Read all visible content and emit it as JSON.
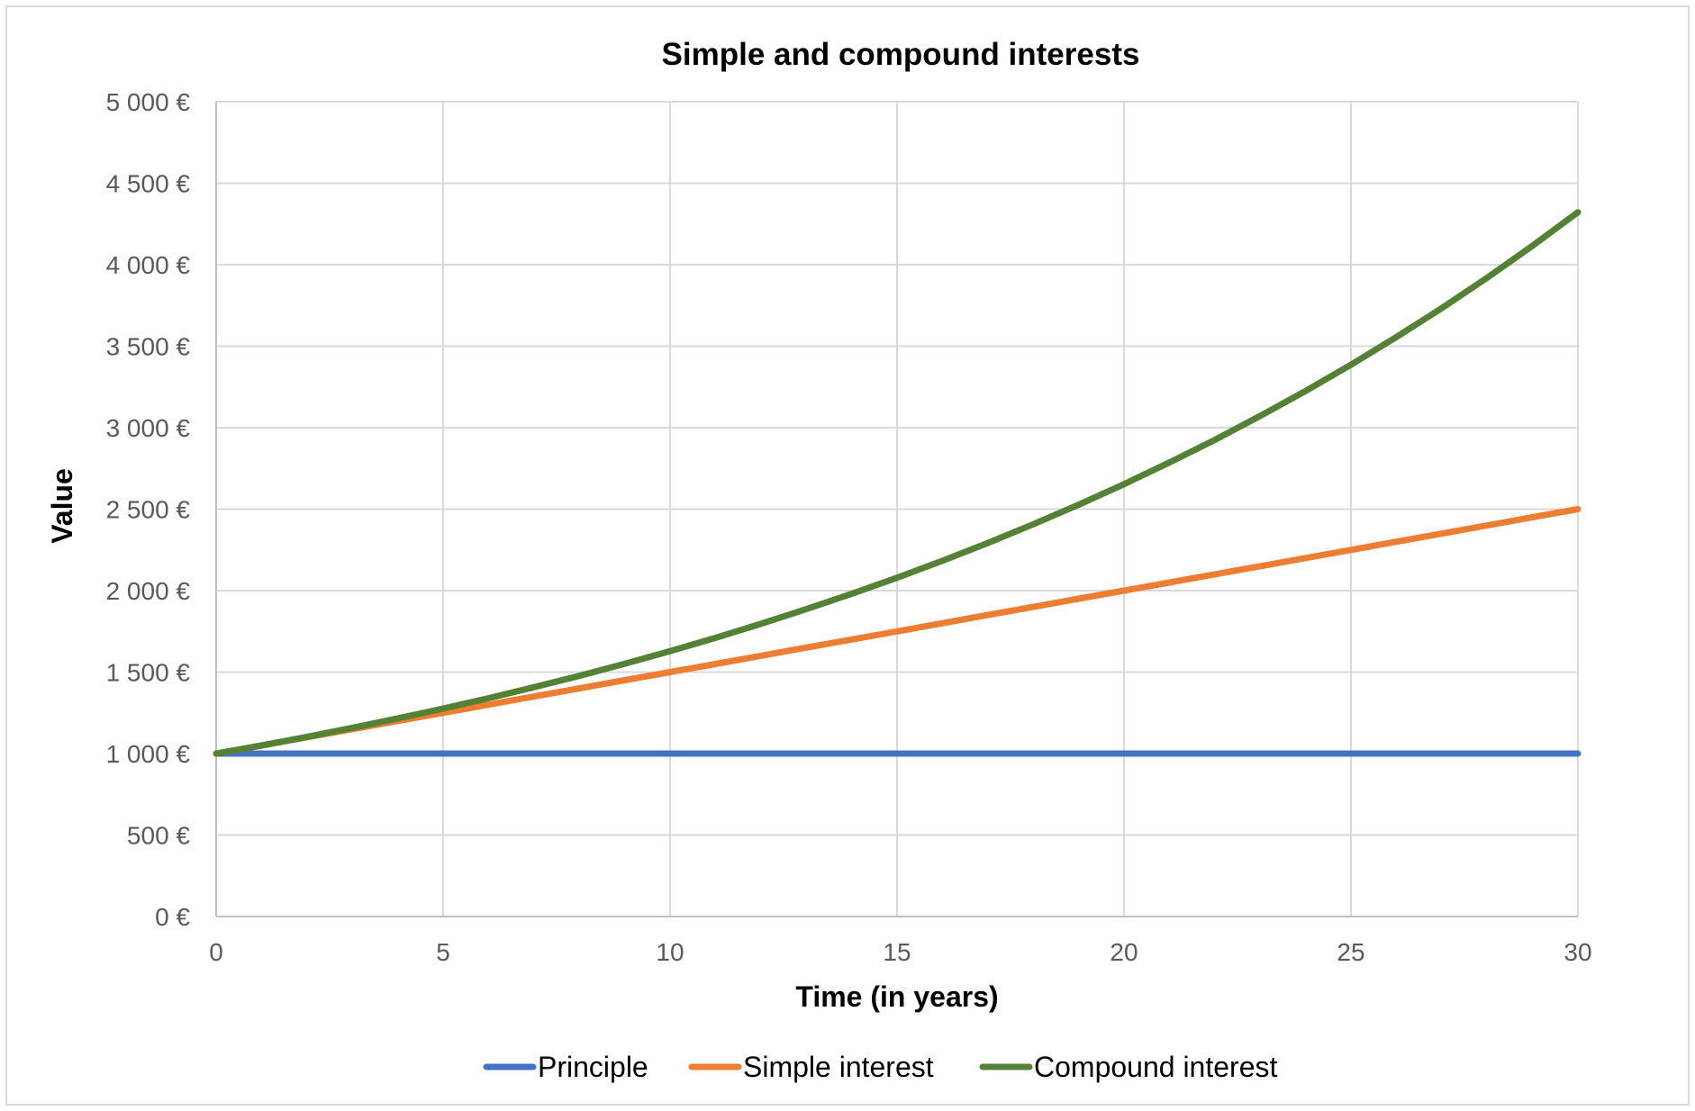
{
  "chart_data": {
    "type": "line",
    "title": "Simple and compound interests",
    "xlabel": "Time (in years)",
    "ylabel": "Value",
    "xlim": [
      0,
      30
    ],
    "ylim": [
      0,
      5000
    ],
    "x_ticks": [
      "0",
      "5",
      "10",
      "15",
      "20",
      "25",
      "30"
    ],
    "x_tick_values": [
      0,
      5,
      10,
      15,
      20,
      25,
      30
    ],
    "y_ticks": [
      "0 €",
      "500 €",
      "1 000 €",
      "1 500 €",
      "2 000 €",
      "2 500 €",
      "3 000 €",
      "3 500 €",
      "4 000 €",
      "4 500 €",
      "5 000 €"
    ],
    "y_tick_values": [
      0,
      500,
      1000,
      1500,
      2000,
      2500,
      3000,
      3500,
      4000,
      4500,
      5000
    ],
    "grid": true,
    "legend_position": "bottom",
    "x": [
      0,
      1,
      2,
      3,
      4,
      5,
      6,
      7,
      8,
      9,
      10,
      11,
      12,
      13,
      14,
      15,
      16,
      17,
      18,
      19,
      20,
      21,
      22,
      23,
      24,
      25,
      26,
      27,
      28,
      29,
      30
    ],
    "series": [
      {
        "name": "Principle",
        "color": "#4472c4",
        "values": [
          1000,
          1000,
          1000,
          1000,
          1000,
          1000,
          1000,
          1000,
          1000,
          1000,
          1000,
          1000,
          1000,
          1000,
          1000,
          1000,
          1000,
          1000,
          1000,
          1000,
          1000,
          1000,
          1000,
          1000,
          1000,
          1000,
          1000,
          1000,
          1000,
          1000,
          1000
        ]
      },
      {
        "name": "Simple interest",
        "color": "#ed7d31",
        "values": [
          1000,
          1050,
          1100,
          1150,
          1200,
          1250,
          1300,
          1350,
          1400,
          1450,
          1500,
          1550,
          1600,
          1650,
          1700,
          1750,
          1800,
          1850,
          1900,
          1950,
          2000,
          2050,
          2100,
          2150,
          2200,
          2250,
          2300,
          2350,
          2400,
          2450,
          2500
        ]
      },
      {
        "name": "Compound interest",
        "color": "#548235",
        "values": [
          1000,
          1050,
          1103,
          1158,
          1216,
          1276,
          1340,
          1407,
          1477,
          1551,
          1629,
          1710,
          1796,
          1886,
          1980,
          2079,
          2183,
          2292,
          2407,
          2527,
          2653,
          2786,
          2925,
          3072,
          3225,
          3386,
          3556,
          3733,
          3920,
          4116,
          4322
        ]
      }
    ]
  }
}
